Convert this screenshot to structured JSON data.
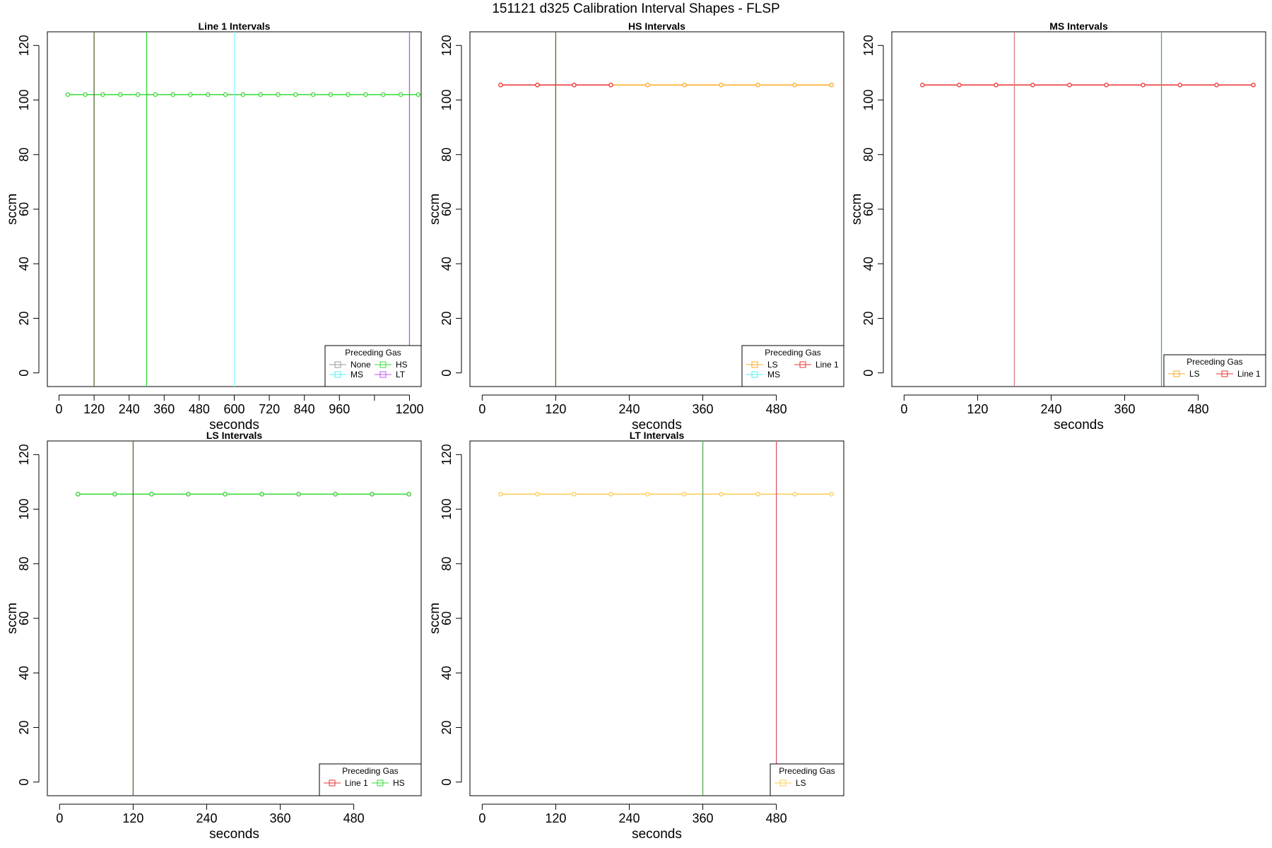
{
  "figure": {
    "suptitle": "151121   d325   Calibration Interval Shapes - FLSP"
  },
  "chart_data": [
    {
      "type": "line",
      "title": "Line 1 Intervals",
      "xlabel": "seconds",
      "ylabel": "sccm",
      "xlim": [
        -40,
        1240
      ],
      "ylim": [
        -5,
        125
      ],
      "xticks": [
        0,
        120,
        240,
        360,
        480,
        600,
        720,
        840,
        960,
        1080,
        1200
      ],
      "xtick_labels": [
        "0",
        "120",
        "240",
        "360",
        "480",
        "600",
        "720",
        "840",
        "960",
        "",
        "1200"
      ],
      "yticks": [
        0,
        20,
        40,
        60,
        80,
        100,
        120
      ],
      "vlines": [
        {
          "x": 120,
          "color": "#556b2f"
        },
        {
          "x": 300,
          "color": "#33dd33"
        },
        {
          "x": 600,
          "color": "#88ffff"
        },
        {
          "x": 1200,
          "color": "#bb55ee"
        }
      ],
      "series": [
        {
          "name": "None",
          "color": "#999999",
          "x": [],
          "y": []
        },
        {
          "name": "HS",
          "color": "#33dd33",
          "x": [
            30,
            90,
            150,
            210,
            270,
            330,
            390,
            450,
            510,
            570,
            630,
            690,
            750,
            810,
            870,
            930,
            990,
            1050,
            1110,
            1170,
            1230
          ],
          "y": [
            102,
            102,
            102,
            102,
            102,
            102,
            102,
            102,
            102,
            102,
            102,
            102,
            102,
            102,
            102,
            102,
            102,
            102,
            102,
            102,
            102
          ]
        },
        {
          "name": "MS",
          "color": "#55eeee",
          "x": [],
          "y": []
        },
        {
          "name": "LT",
          "color": "#bb55ee",
          "x": [],
          "y": []
        }
      ],
      "legend": {
        "title": "Preceding Gas",
        "position": "bottom-right",
        "ncol": 2,
        "items": [
          "None",
          "HS",
          "MS",
          "LT"
        ]
      }
    },
    {
      "type": "line",
      "title": "HS Intervals",
      "xlabel": "seconds",
      "ylabel": "sccm",
      "xlim": [
        -20,
        590
      ],
      "ylim": [
        -5,
        125
      ],
      "xticks": [
        0,
        120,
        240,
        360,
        480
      ],
      "xtick_labels": [
        "0",
        "120",
        "240",
        "360",
        "480"
      ],
      "yticks": [
        0,
        20,
        40,
        60,
        80,
        100,
        120
      ],
      "vlines": [
        {
          "x": 120,
          "color": "#556b2f"
        }
      ],
      "series": [
        {
          "name": "LS",
          "color": "#ffaa22",
          "x": [
            30,
            90,
            150,
            210,
            270,
            330,
            390,
            450,
            510,
            570
          ],
          "y": [
            105.5,
            105.5,
            105.5,
            105.5,
            105.5,
            105.5,
            105.5,
            105.5,
            105.5,
            105.5
          ]
        },
        {
          "name": "Line 1",
          "color": "#ee3333",
          "x": [
            30,
            90,
            150,
            210
          ],
          "y": [
            105.5,
            105.5,
            105.5,
            105.5
          ]
        },
        {
          "name": "MS",
          "color": "#55eeee",
          "x": [],
          "y": []
        }
      ],
      "legend": {
        "title": "Preceding Gas",
        "position": "bottom-right",
        "ncol": 2,
        "items": [
          "LS",
          "Line 1",
          "MS"
        ]
      }
    },
    {
      "type": "line",
      "title": "MS Intervals",
      "xlabel": "seconds",
      "ylabel": "sccm",
      "xlim": [
        -20,
        590
      ],
      "ylim": [
        -5,
        125
      ],
      "xticks": [
        0,
        120,
        240,
        360,
        480
      ],
      "xtick_labels": [
        "0",
        "120",
        "240",
        "360",
        "480"
      ],
      "yticks": [
        0,
        20,
        40,
        60,
        80,
        100,
        120
      ],
      "vlines": [
        {
          "x": 180,
          "color": "#dd7777"
        },
        {
          "x": 420,
          "color": "#55aa55"
        }
      ],
      "series": [
        {
          "name": "LS",
          "color": "#ffaa22",
          "x": [
            150
          ],
          "y": [
            105.5
          ]
        },
        {
          "name": "Line 1",
          "color": "#ee3333",
          "x": [
            30,
            90,
            150,
            210,
            270,
            330,
            390,
            450,
            510,
            570
          ],
          "y": [
            105.5,
            105.5,
            105.5,
            105.5,
            105.5,
            105.5,
            105.5,
            105.5,
            105.5,
            105.5
          ]
        }
      ],
      "legend": {
        "title": "Preceding Gas",
        "position": "bottom-right",
        "ncol": 2,
        "items": [
          "LS",
          "Line 1"
        ]
      }
    },
    {
      "type": "line",
      "title": "LS Intervals",
      "xlabel": "seconds",
      "ylabel": "sccm",
      "xlim": [
        -20,
        590
      ],
      "ylim": [
        -5,
        125
      ],
      "xticks": [
        0,
        120,
        240,
        360,
        480
      ],
      "xtick_labels": [
        "0",
        "120",
        "240",
        "360",
        "480"
      ],
      "yticks": [
        0,
        20,
        40,
        60,
        80,
        100,
        120
      ],
      "vlines": [
        {
          "x": 120,
          "color": "#556b2f"
        }
      ],
      "series": [
        {
          "name": "Line 1",
          "color": "#ee3333",
          "x": [
            30,
            90,
            150,
            210,
            270,
            330,
            390,
            450,
            510,
            570
          ],
          "y": [
            105.5,
            105.5,
            105.5,
            105.5,
            105.5,
            105.5,
            105.5,
            105.5,
            105.5,
            105.5
          ]
        },
        {
          "name": "HS",
          "color": "#33dd33",
          "x": [
            30,
            90,
            150,
            210,
            270,
            330,
            390,
            450,
            510,
            570
          ],
          "y": [
            105.5,
            105.5,
            105.5,
            105.5,
            105.5,
            105.5,
            105.5,
            105.5,
            105.5,
            105.5
          ]
        }
      ],
      "legend": {
        "title": "Preceding Gas",
        "position": "bottom-right",
        "ncol": 2,
        "items": [
          "Line 1",
          "HS"
        ]
      }
    },
    {
      "type": "line",
      "title": "LT Intervals",
      "xlabel": "seconds",
      "ylabel": "sccm",
      "xlim": [
        -20,
        590
      ],
      "ylim": [
        -5,
        125
      ],
      "xticks": [
        0,
        120,
        240,
        360,
        480
      ],
      "xtick_labels": [
        "0",
        "120",
        "240",
        "360",
        "480"
      ],
      "yticks": [
        0,
        20,
        40,
        60,
        80,
        100,
        120
      ],
      "vlines": [
        {
          "x": 360,
          "color": "#55aa55"
        },
        {
          "x": 480,
          "color": "#dd5566"
        }
      ],
      "series": [
        {
          "name": "LS",
          "color": "#ffcc55",
          "x": [
            30,
            90,
            150,
            210,
            270,
            330,
            390,
            450,
            510,
            570
          ],
          "y": [
            105.5,
            105.5,
            105.5,
            105.5,
            105.5,
            105.5,
            105.5,
            105.5,
            105.5,
            105.5
          ]
        }
      ],
      "legend": {
        "title": "Preceding Gas",
        "position": "bottom-right",
        "ncol": 1,
        "items": [
          "LS"
        ]
      }
    }
  ]
}
